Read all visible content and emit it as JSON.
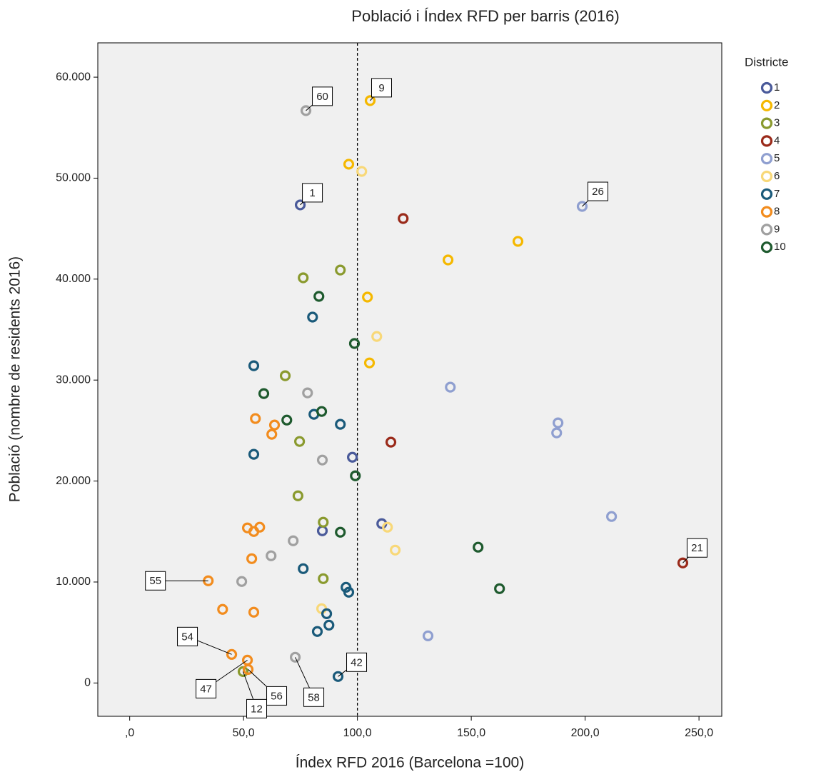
{
  "chart_data": {
    "type": "scatter",
    "title": "Població i Índex RFD per barris (2016)",
    "x_label": "Índex RFD 2016 (Barcelona =100)",
    "y_label": "Població (nombre de residents 2016)",
    "legend_title": "Districte",
    "legend_position": "right",
    "xlim": [
      -14,
      260
    ],
    "ylim": [
      -3300,
      63400
    ],
    "xticks": [
      {
        "value": 0,
        "label": ",0"
      },
      {
        "value": 50,
        "label": "50,0"
      },
      {
        "value": 100,
        "label": "100,0"
      },
      {
        "value": 150,
        "label": "150,0"
      },
      {
        "value": 200,
        "label": "200,0"
      },
      {
        "value": 250,
        "label": "250,0"
      }
    ],
    "yticks": [
      0,
      {
        "value": 10000,
        "label": "10.000"
      },
      {
        "value": 20000,
        "label": "20.000"
      },
      {
        "value": 30000,
        "label": "30.000"
      },
      {
        "value": 40000,
        "label": "40.000"
      },
      {
        "value": 50000,
        "label": "50.000"
      },
      {
        "value": 60000,
        "label": "60.000"
      }
    ],
    "reference_x": 100,
    "series": [
      {
        "name": "1",
        "color": "#4a5a9a",
        "x": [
          74.9,
          97.8,
          84.6,
          110.7
        ],
        "values": [
          47350,
          22360,
          15070,
          15780
        ],
        "point_labels": [
          "1",
          null,
          null,
          null
        ]
      },
      {
        "name": "2",
        "color": "#f5b800",
        "x": [
          105.6,
          96.2,
          170.5,
          139.8,
          104.4,
          105.3
        ],
        "values": [
          57680,
          51380,
          43740,
          41900,
          38220,
          31700
        ],
        "point_labels": [
          "9",
          null,
          null,
          null,
          null,
          null
        ]
      },
      {
        "name": "3",
        "color": "#8a9a2e",
        "x": [
          76.2,
          92.5,
          68.3,
          74.6,
          73.9,
          85.0,
          85.0,
          49.8
        ],
        "values": [
          40130,
          40900,
          30430,
          23920,
          18540,
          15920,
          10330,
          1130
        ],
        "point_labels": [
          null,
          null,
          null,
          null,
          null,
          null,
          null,
          "12"
        ]
      },
      {
        "name": "4",
        "color": "#9a2a1a",
        "x": [
          120.1,
          114.7,
          242.9
        ],
        "values": [
          46000,
          23850,
          11890
        ],
        "point_labels": [
          null,
          null,
          "21"
        ]
      },
      {
        "name": "5",
        "color": "#8f9fd0",
        "x": [
          198.7,
          140.8,
          188.1,
          187.5,
          211.6,
          131.0
        ],
        "values": [
          47200,
          29300,
          25760,
          24770,
          16490,
          4670
        ],
        "point_labels": [
          "26",
          null,
          null,
          null,
          null,
          null
        ]
      },
      {
        "name": "6",
        "color": "#f8d878",
        "x": [
          101.9,
          108.5,
          113.2,
          116.6,
          84.3
        ],
        "values": [
          50670,
          34320,
          15430,
          13160,
          7360
        ],
        "point_labels": [
          null,
          null,
          null,
          null,
          null
        ]
      },
      {
        "name": "7",
        "color": "#1a5a7a",
        "x": [
          80.3,
          54.5,
          80.9,
          92.5,
          54.5,
          76.2,
          95.0,
          96.2,
          86.5,
          87.5,
          82.4,
          91.5
        ],
        "values": [
          36240,
          31420,
          26610,
          25620,
          22650,
          11320,
          9480,
          8990,
          6860,
          5730,
          5100,
          640
        ],
        "point_labels": [
          null,
          null,
          null,
          null,
          null,
          null,
          null,
          null,
          null,
          null,
          null,
          "42"
        ]
      },
      {
        "name": "8",
        "color": "#f28c1e",
        "x": [
          55.2,
          63.6,
          62.4,
          57.1,
          51.7,
          54.5,
          53.6,
          34.5,
          40.8,
          54.5,
          44.8,
          51.7,
          52.0
        ],
        "values": [
          26190,
          25550,
          24630,
          15430,
          15360,
          15000,
          12310,
          10120,
          7290,
          7010,
          2830,
          2260,
          1340
        ],
        "point_labels": [
          null,
          null,
          null,
          null,
          null,
          null,
          null,
          "55",
          null,
          null,
          "54",
          "47",
          "56"
        ]
      },
      {
        "name": "9",
        "color": "#a0a0a0",
        "x": [
          77.4,
          78.1,
          84.6,
          71.8,
          62.1,
          49.2,
          72.7
        ],
        "values": [
          56690,
          28730,
          22080,
          14080,
          12600,
          10050,
          2550
        ],
        "point_labels": [
          "60",
          null,
          null,
          null,
          null,
          null,
          "58"
        ]
      },
      {
        "name": "10",
        "color": "#1e5a2e",
        "x": [
          83.1,
          98.7,
          58.9,
          84.3,
          69.0,
          99.1,
          92.5,
          153.0,
          162.4
        ],
        "values": [
          38290,
          33620,
          28660,
          26890,
          26040,
          20520,
          14930,
          13450,
          9340
        ],
        "point_labels": [
          null,
          null,
          null,
          null,
          null,
          null,
          null,
          null,
          null
        ]
      }
    ]
  }
}
